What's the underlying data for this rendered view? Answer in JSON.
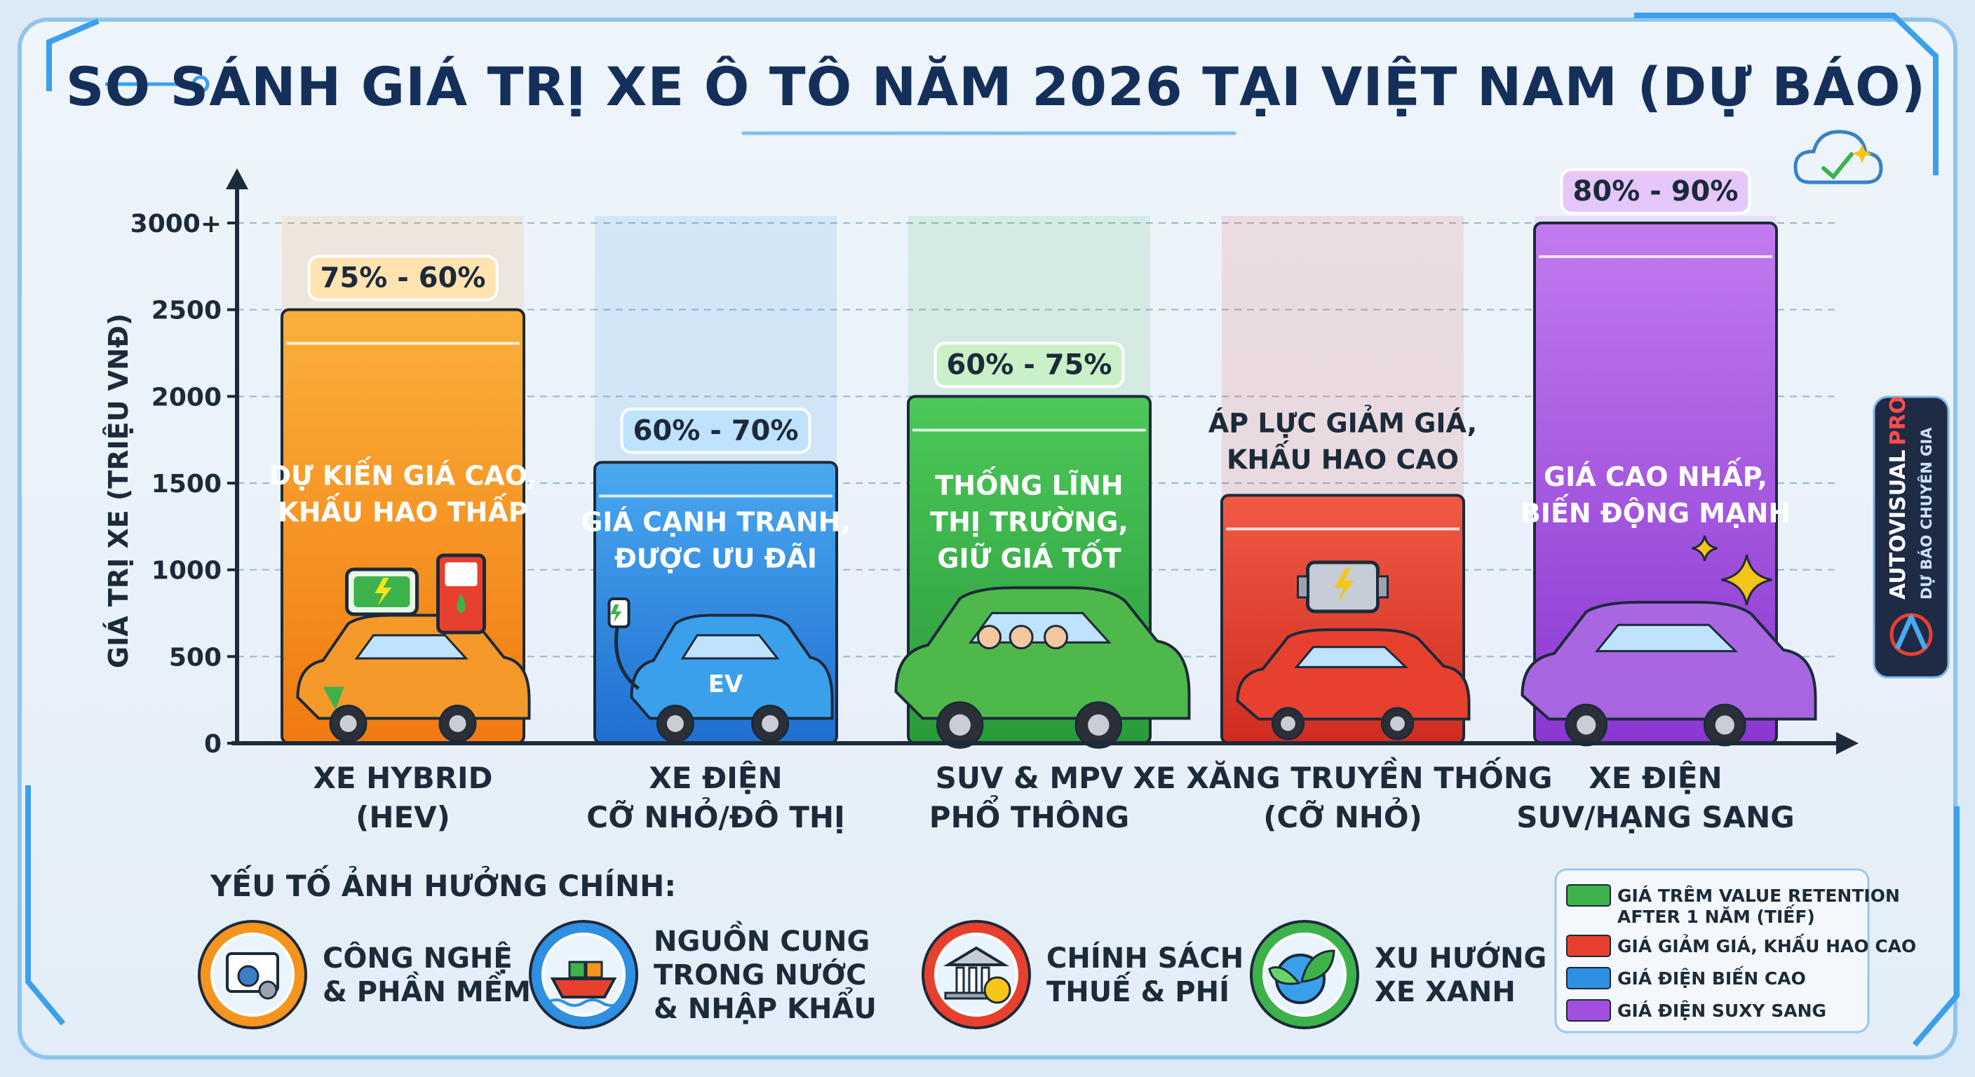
{
  "chart_data": {
    "type": "bar",
    "title": "SO SÁNH GIÁ TRỊ XE Ô TÔ NĂM 2026 TẠI VIỆT NAM (DỰ BÁO)",
    "ylabel": "GIÁ TRỊ XE (TRIỆU VNĐ)",
    "xlabel": "",
    "ylim": [
      0,
      3000
    ],
    "yticks": [
      0,
      500,
      1000,
      1500,
      2000,
      2500,
      3000
    ],
    "ytick_labels": [
      "0",
      "500",
      "1000",
      "1500",
      "2000",
      "2500",
      "3000+"
    ],
    "grid": true,
    "categories": [
      [
        "XE HYBRID",
        "(HEV)"
      ],
      [
        "XE ĐIỆN",
        "CỠ NHỎ/ĐÔ THỊ"
      ],
      [
        "SUV & MPV",
        "PHỔ THÔNG"
      ],
      [
        "XE XĂNG TRUYỀN THỐNG",
        "(CỠ NHỎ)"
      ],
      [
        "XE ĐIỆN",
        "SUV/HẠNG SANG"
      ]
    ],
    "values": [
      2500,
      1620,
      2000,
      1430,
      3000
    ],
    "badges": [
      "75% - 60%",
      "60% - 70%",
      "60% - 75%",
      "",
      "80% - 90%"
    ],
    "bar_notes": [
      [
        "DỰ KIẾN GIÁ CAO,",
        "KHẤU HAO THẤP"
      ],
      [
        "GIÁ CẠNH TRANH,",
        "ĐƯỢC ƯU ĐÃI"
      ],
      [
        "THỐNG LĨNH",
        "THỊ TRƯỜNG,",
        "GIỮ GIÁ TỐT"
      ],
      [
        "ÁP LỰC GIẢM GIÁ,",
        "KHẤU HAO CAO"
      ],
      [
        "GIÁ CAO NHẤP,",
        "BIẾN ĐỘNG MẠNH"
      ]
    ],
    "bar_icons": [
      "hybrid-car-icon",
      "ev-car-icon",
      "suv-family-icon",
      "sedan-engine-icon",
      "luxury-suv-icon"
    ],
    "colors": [
      "#f5941f",
      "#2f8fe0",
      "#3db24a",
      "#e8402f",
      "#a24fe0"
    ],
    "legend": {
      "placement": "bottom-right",
      "entries": [
        {
          "label": [
            "GIÁ TRÊM VALUE RETENTION",
            "AFTER 1 NĂM (TIẾF)"
          ],
          "color": "#3db24a"
        },
        {
          "label": [
            "GIÁ GIẢM GIÁ, KHẤU HAO CAO"
          ],
          "color": "#e8402f"
        },
        {
          "label": [
            "GIÁ ĐIỆN BIẾN CAO"
          ],
          "color": "#2f8fe0"
        },
        {
          "label": [
            "GIÁ ĐIỆN SUXY SANG"
          ],
          "color": "#a24fe0"
        }
      ]
    }
  },
  "factors": {
    "title": "YẾU TỐ ẢNH HƯỞNG CHÍNH:",
    "items": [
      {
        "label": [
          "CÔNG NGHỆ",
          "& PHẦN MỀM"
        ],
        "icon": "gear-window-icon",
        "color": "#f5941f"
      },
      {
        "label": [
          "NGUỒN CUNG",
          "TRONG NƯỚC",
          "& NHẬP KHẨU"
        ],
        "icon": "cargo-ship-icon",
        "color": "#2f8fe0"
      },
      {
        "label": [
          "CHÍNH SÁCH",
          "THUẾ & PHÍ"
        ],
        "icon": "bank-tax-icon",
        "color": "#e8402f"
      },
      {
        "label": [
          "XU HƯỚNG",
          "XE XANH"
        ],
        "icon": "green-leaf-globe-icon",
        "color": "#3db24a"
      }
    ]
  },
  "brand": {
    "name": "AUTOVISUAL",
    "pro": "PRO",
    "subtitle": "DỰ BÁO CHUYÊN GIA"
  }
}
